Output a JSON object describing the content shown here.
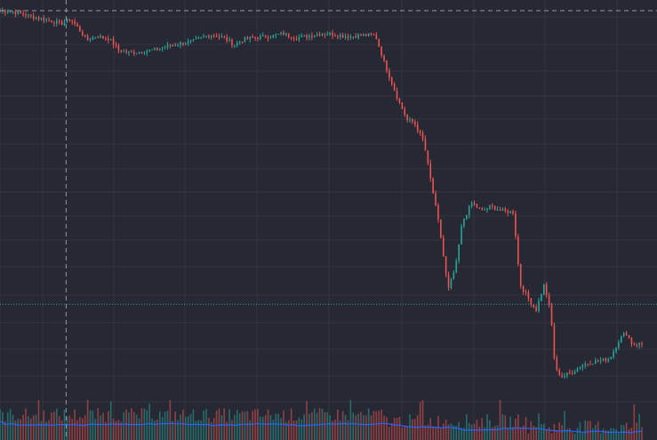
{
  "theme": {
    "background": "#262833",
    "grid": "#32353f",
    "up_color": "#26a69a",
    "down_color": "#ef5350",
    "crosshair": "#9598a1",
    "price_line": "#26a69a",
    "volume_ma": "#2962ff"
  },
  "chart_data": {
    "type": "candlestick",
    "title": "",
    "xlabel": "",
    "ylabel": "",
    "grid": true,
    "legend": "none",
    "axis_labels_visible": false,
    "series_shape": [
      [
        0,
        100.2
      ],
      [
        0.02,
        100.0
      ],
      [
        0.05,
        98.8
      ],
      [
        0.085,
        97.7
      ],
      [
        0.095,
        97.2
      ],
      [
        0.11,
        98.3
      ],
      [
        0.125,
        95.6
      ],
      [
        0.135,
        93.5
      ],
      [
        0.15,
        94.4
      ],
      [
        0.17,
        93.8
      ],
      [
        0.185,
        91.2
      ],
      [
        0.2,
        90.6
      ],
      [
        0.22,
        90.9
      ],
      [
        0.24,
        91.3
      ],
      [
        0.27,
        92.4
      ],
      [
        0.3,
        93.2
      ],
      [
        0.32,
        94.4
      ],
      [
        0.33,
        94.8
      ],
      [
        0.35,
        93.9
      ],
      [
        0.365,
        92.4
      ],
      [
        0.375,
        93.3
      ],
      [
        0.39,
        94.0
      ],
      [
        0.42,
        94.3
      ],
      [
        0.44,
        95.0
      ],
      [
        0.46,
        94.0
      ],
      [
        0.48,
        94.4
      ],
      [
        0.5,
        95.0
      ],
      [
        0.52,
        94.8
      ],
      [
        0.545,
        94.3
      ],
      [
        0.565,
        94.6
      ],
      [
        0.585,
        94.6
      ],
      [
        0.6,
        87.8
      ],
      [
        0.62,
        80.0
      ],
      [
        0.635,
        75.2
      ],
      [
        0.645,
        74.8
      ],
      [
        0.66,
        70.5
      ],
      [
        0.675,
        58.4
      ],
      [
        0.685,
        50.5
      ],
      [
        0.698,
        36.5
      ],
      [
        0.71,
        42.0
      ],
      [
        0.72,
        52.0
      ],
      [
        0.735,
        56.4
      ],
      [
        0.75,
        54.6
      ],
      [
        0.765,
        55.6
      ],
      [
        0.78,
        54.7
      ],
      [
        0.8,
        54.3
      ],
      [
        0.81,
        38.0
      ],
      [
        0.825,
        34.3
      ],
      [
        0.835,
        32.0
      ],
      [
        0.848,
        38.0
      ],
      [
        0.858,
        31.0
      ],
      [
        0.865,
        18.5
      ],
      [
        0.875,
        17.0
      ],
      [
        0.89,
        17.8
      ],
      [
        0.91,
        19.8
      ],
      [
        0.93,
        20.4
      ],
      [
        0.95,
        21.0
      ],
      [
        0.965,
        25.4
      ],
      [
        0.975,
        27.0
      ],
      [
        0.985,
        24.3
      ]
    ],
    "candle_count": 250,
    "y_range": [
      12,
      101
    ],
    "last_price_marker": 33.4,
    "crosshair": {
      "x_fraction": 0.103,
      "y_value": 100.2
    },
    "volume": {
      "visible": true,
      "moving_average": true
    }
  }
}
